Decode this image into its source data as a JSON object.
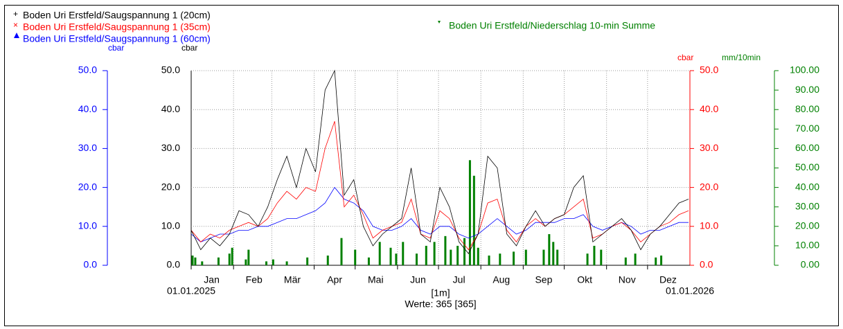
{
  "chart_data": {
    "type": "line",
    "legend": [
      "Boden Uri Erstfeld/Saugspannung 1 (20cm)",
      "Boden Uri Erstfeld/Saugspannung 1 (35cm)",
      "Boden Uri Erstfeld/Saugspannung 1 (60cm)",
      "Boden Uri Erstfeld/Niederschlag 10-min Summe"
    ],
    "y_unit_left": "cbar",
    "y_unit_main": "cbar",
    "y_unit_right": "cbar",
    "y2_unit": "mm/10min",
    "x_start_label": "01.01.2025",
    "x_end_label": "01.01.2026",
    "x_unit_label": "[1m]",
    "footer": "Werte: 365 [365]",
    "xlim": [
      0,
      365
    ],
    "xticks": [
      {
        "value": 0,
        "label": "Jan"
      },
      {
        "value": 31,
        "label": "Feb"
      },
      {
        "value": 59,
        "label": "Mär"
      },
      {
        "value": 90,
        "label": "Apr"
      },
      {
        "value": 120,
        "label": "Mai"
      },
      {
        "value": 151,
        "label": "Jun"
      },
      {
        "value": 181,
        "label": "Jul"
      },
      {
        "value": 212,
        "label": "Aug"
      },
      {
        "value": 243,
        "label": "Sep"
      },
      {
        "value": 273,
        "label": "Okt"
      },
      {
        "value": 304,
        "label": "Nov"
      },
      {
        "value": 334,
        "label": "Dez"
      }
    ],
    "ylim": [
      0,
      50
    ],
    "yticks": [
      {
        "value": 0,
        "label": "0.0"
      },
      {
        "value": 10,
        "label": "10.0"
      },
      {
        "value": 20,
        "label": "20.0"
      },
      {
        "value": 30,
        "label": "30.0"
      },
      {
        "value": 40,
        "label": "40.0"
      },
      {
        "value": 50,
        "label": "50.0"
      }
    ],
    "y2lim": [
      0,
      100
    ],
    "y2ticks": [
      {
        "value": 0,
        "label": "0.00"
      },
      {
        "value": 10,
        "label": "10.00"
      },
      {
        "value": 20,
        "label": "20.00"
      },
      {
        "value": 30,
        "label": "30.00"
      },
      {
        "value": 40,
        "label": "40.00"
      },
      {
        "value": 50,
        "label": "50.00"
      },
      {
        "value": 60,
        "label": "60.00"
      },
      {
        "value": 70,
        "label": "70.00"
      },
      {
        "value": 80,
        "label": "80.00"
      },
      {
        "value": 90,
        "label": "90.00"
      },
      {
        "value": 100,
        "label": "100.00"
      }
    ],
    "grid": true,
    "x": [
      0,
      7,
      14,
      21,
      28,
      35,
      42,
      49,
      56,
      63,
      70,
      77,
      84,
      91,
      98,
      105,
      112,
      119,
      126,
      133,
      140,
      147,
      154,
      161,
      168,
      175,
      182,
      189,
      196,
      203,
      210,
      217,
      224,
      231,
      238,
      245,
      252,
      259,
      266,
      273,
      280,
      287,
      294,
      301,
      308,
      315,
      322,
      329,
      336,
      343,
      350,
      357,
      364
    ],
    "series": [
      {
        "name": "Boden Uri Erstfeld/Saugspannung 1 (20cm)",
        "color": "#000000",
        "values": [
          9,
          4,
          7,
          5,
          8,
          14,
          13,
          10,
          15,
          22,
          28,
          20,
          30,
          24,
          45,
          50,
          18,
          22,
          10,
          5,
          8,
          10,
          12,
          25,
          8,
          6,
          20,
          15,
          6,
          3,
          8,
          28,
          25,
          8,
          5,
          10,
          14,
          10,
          12,
          13,
          20,
          23,
          6,
          8,
          10,
          12,
          9,
          4,
          8,
          10,
          13,
          16,
          17
        ]
      },
      {
        "name": "Boden Uri Erstfeld/Saugspannung 1 (35cm)",
        "color": "#ff0000",
        "values": [
          9,
          6,
          8,
          7,
          9,
          10,
          11,
          10,
          12,
          16,
          19,
          17,
          20,
          19,
          30,
          37,
          15,
          18,
          13,
          7,
          9,
          10,
          11,
          17,
          8,
          7,
          14,
          12,
          7,
          4,
          8,
          16,
          17,
          9,
          6,
          10,
          12,
          10,
          12,
          13,
          15,
          17,
          7,
          8,
          10,
          11,
          9,
          6,
          8,
          10,
          11,
          13,
          14
        ]
      },
      {
        "name": "Boden Uri Erstfeld/Saugspannung 1 (60cm)",
        "color": "#0000ff",
        "values": [
          8,
          6,
          7,
          8,
          8,
          9,
          9,
          10,
          10,
          11,
          12,
          12,
          13,
          14,
          16,
          20,
          17,
          16,
          14,
          10,
          9,
          9,
          10,
          12,
          9,
          8,
          10,
          10,
          8,
          7,
          8,
          10,
          12,
          10,
          8,
          9,
          11,
          11,
          11,
          12,
          12,
          13,
          10,
          9,
          10,
          11,
          10,
          8,
          9,
          9,
          10,
          11,
          11
        ]
      },
      {
        "name": "Boden Uri Erstfeld/Niederschlag 10-min Summe",
        "color": "#008000",
        "axis": "y2",
        "type": "bar",
        "x": [
          1,
          3,
          8,
          20,
          28,
          30,
          40,
          42,
          55,
          60,
          70,
          85,
          100,
          110,
          120,
          130,
          138,
          146,
          150,
          155,
          165,
          172,
          178,
          186,
          190,
          195,
          200,
          204,
          207,
          210,
          218,
          226,
          236,
          245,
          258,
          262,
          265,
          268,
          290,
          295,
          300,
          318,
          325,
          340,
          344
        ],
        "values": [
          5,
          4,
          2,
          4,
          6,
          9,
          3,
          8,
          2,
          3,
          2,
          4,
          5,
          14,
          8,
          4,
          12,
          9,
          6,
          12,
          6,
          10,
          12,
          15,
          8,
          10,
          14,
          54,
          46,
          9,
          5,
          6,
          7,
          8,
          8,
          16,
          12,
          8,
          6,
          10,
          8,
          4,
          6,
          4,
          5
        ]
      }
    ]
  }
}
